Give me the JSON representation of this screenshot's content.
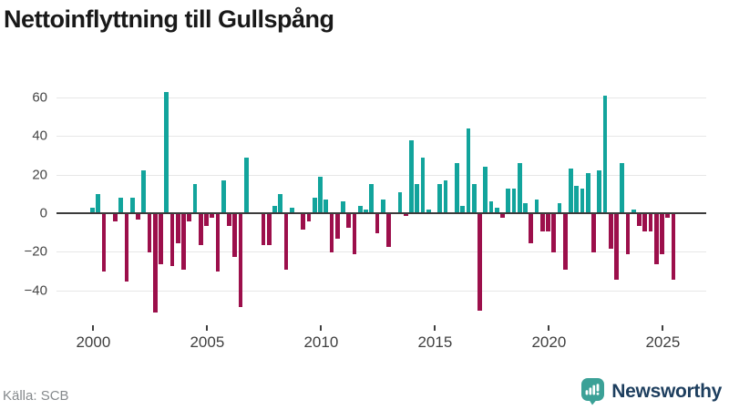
{
  "title": "Nettoinflyttning till Gullspång",
  "source": "Källa: SCB",
  "logo": {
    "text": "Newsworthy"
  },
  "colors": {
    "positive_bar": "#12a49c",
    "negative_bar": "#9c0f4b",
    "grid": "#e7e7e7",
    "zero_axis": "#3b3b3b",
    "logo_icon_teal": "#3ba197",
    "logo_text_navy": "#1d3e5e"
  },
  "chart_data": {
    "type": "bar",
    "title": "Nettoinflyttning till Gullspång",
    "xlabel": "",
    "ylabel": "",
    "frequency": "quarterly",
    "x_range": "2000 Q1 – 2025 Q3",
    "x_tick_labels": [
      "2000",
      "2005",
      "2010",
      "2015",
      "2020",
      "2025"
    ],
    "y_ticks": [
      {
        "v": 60,
        "label": "60"
      },
      {
        "v": 40,
        "label": "40"
      },
      {
        "v": 20,
        "label": "20"
      },
      {
        "v": 0,
        "label": "0"
      },
      {
        "v": -20,
        "label": "−20"
      },
      {
        "v": -40,
        "label": "−40"
      }
    ],
    "ylim": [
      -58,
      68
    ],
    "grid": true,
    "legend": false,
    "values": [
      3,
      10,
      -30,
      0,
      -4,
      8,
      -35,
      8,
      -3,
      22,
      -20,
      -51,
      -26,
      63,
      -27,
      -15,
      -29,
      -4,
      15,
      -16,
      -6,
      -2,
      -30,
      17,
      -6,
      -22,
      -48,
      29,
      0,
      0,
      -16,
      -16,
      4,
      10,
      -29,
      3,
      0,
      -8,
      -4,
      8,
      19,
      7,
      -20,
      -13,
      6,
      -7,
      -21,
      4,
      2,
      15,
      -10,
      7,
      -17,
      0,
      11,
      -1,
      38,
      15,
      29,
      2,
      0,
      15,
      17,
      0,
      26,
      4,
      44,
      15,
      -50,
      24,
      6,
      3,
      -2,
      13,
      13,
      26,
      5,
      -15,
      7,
      -9,
      -9,
      -20,
      5,
      -29,
      23,
      14,
      13,
      21,
      -20,
      22,
      61,
      -18,
      -34,
      26,
      -21,
      2,
      -6,
      -9,
      -9,
      -26,
      -21,
      -2,
      -34
    ]
  }
}
